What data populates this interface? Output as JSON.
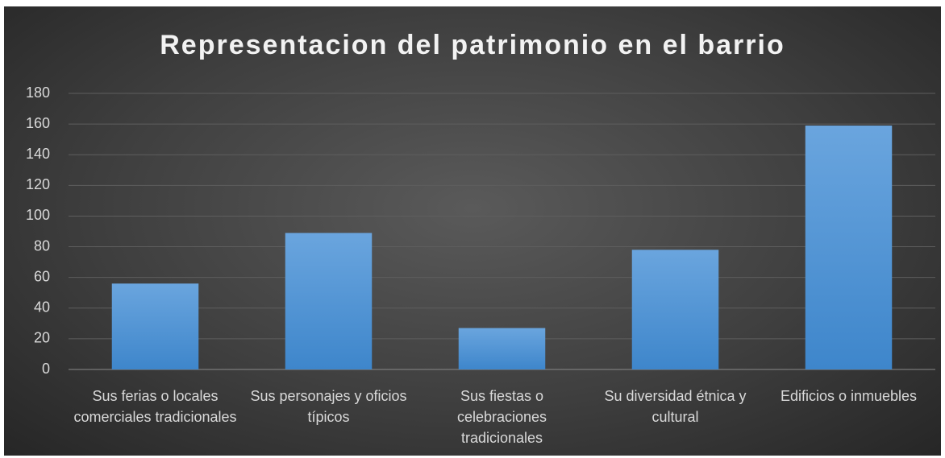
{
  "chart_data": {
    "type": "bar",
    "title": "Representacion del patrimonio en el barrio",
    "categories": [
      "Sus ferias o locales comerciales tradicionales",
      "Sus personajes y oficios típicos",
      "Sus fiestas o celebraciones tradicionales",
      "Su diversidad étnica y cultural",
      "Edificios o inmuebles"
    ],
    "values": [
      56,
      89,
      27,
      78,
      159
    ],
    "color": "#5b9bd5",
    "ylim": [
      0,
      180
    ],
    "yticks": [
      0,
      20,
      40,
      60,
      80,
      100,
      120,
      140,
      160,
      180
    ],
    "grid": true
  }
}
